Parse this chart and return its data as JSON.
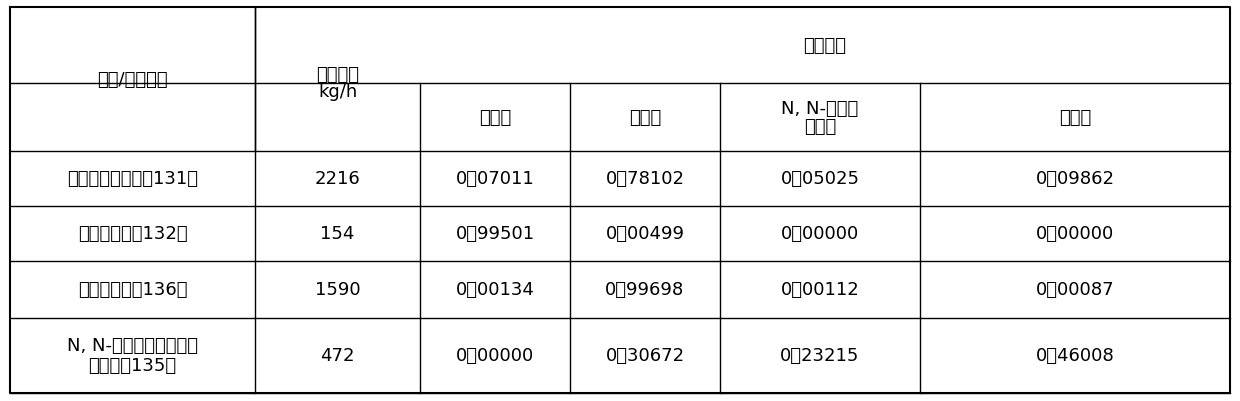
{
  "title_row1": [
    "",
    "质量流量",
    "质量分数",
    "",
    "",
    ""
  ],
  "header_row2_col0": "采出/进料部位",
  "header_row2_col1": "kg/h",
  "header_row2_col2": "环己酮",
  "header_row2_col3": "环己醇",
  "header_row2_col4_line1": "N, N-二甲基",
  "header_row2_col4_line2": "乙酰胺",
  "header_row2_col5": "重组分",
  "rows": [
    {
      "col0_line1": "第一精馏塔进料（131）",
      "col0_line2": "",
      "col1": "2216",
      "col2": "0．07011",
      "col3": "0．78102",
      "col4": "0．05025",
      "col5": "0．09862"
    },
    {
      "col0_line1": "环己酮产品（132）",
      "col0_line2": "",
      "col1": "154",
      "col2": "0．99501",
      "col3": "0．00499",
      "col4": "0．00000",
      "col5": "0．00000"
    },
    {
      "col0_line1": "环己醇产品（136）",
      "col0_line2": "",
      "col1": "1590",
      "col2": "0．00134",
      "col3": "0．99698",
      "col4": "0．00112",
      "col5": "0．00087"
    },
    {
      "col0_line1": "N, N-二甲基乙酰胺混合",
      "col0_line2": "物出料（135）",
      "col1": "472",
      "col2": "0．00000",
      "col3": "0．30672",
      "col4": "0．23215",
      "col5": "0．46008"
    }
  ],
  "bg_color": "#ffffff",
  "line_color": "#000000",
  "text_color": "#000000",
  "font_size": 13,
  "header_font_size": 13
}
